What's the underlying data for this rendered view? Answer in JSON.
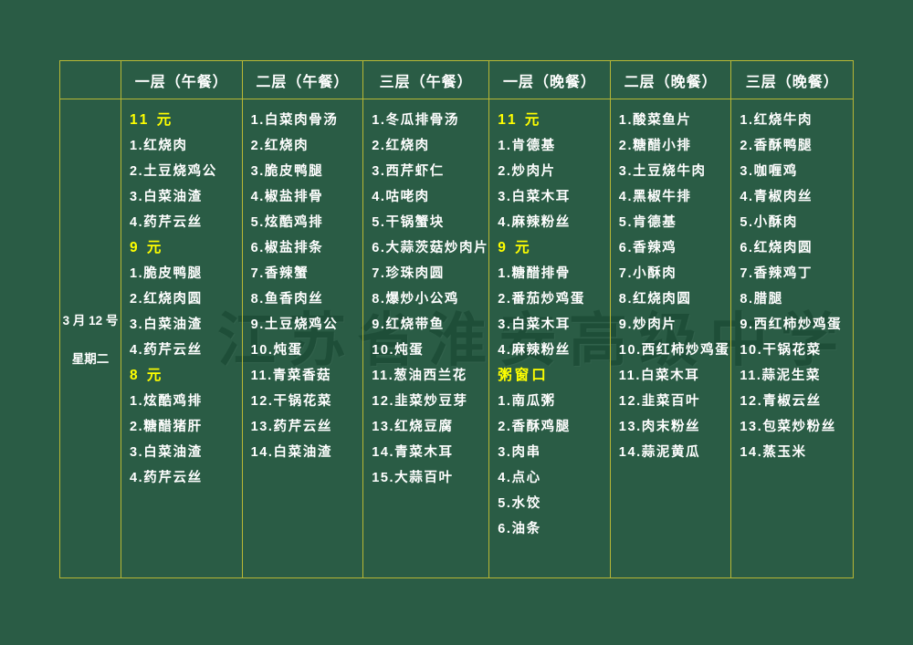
{
  "colors": {
    "background": "#2a5c45",
    "grid_line": "#b7b735",
    "item_text": "#ffffff",
    "highlight_text": "#ffff00",
    "watermark_text": "#1d4c36"
  },
  "watermark": {
    "text": "江苏省淮安高级中学"
  },
  "date": {
    "line1": "3 月 12 号",
    "line2": "星期二"
  },
  "columns": [
    {
      "header": "一层（午餐）",
      "items": [
        {
          "text": "11 元",
          "highlight": true
        },
        {
          "text": "1.红烧肉",
          "highlight": false
        },
        {
          "text": "2.土豆烧鸡公",
          "highlight": false
        },
        {
          "text": "3.白菜油渣",
          "highlight": false
        },
        {
          "text": "4.药芹云丝",
          "highlight": false
        },
        {
          "text": "9 元",
          "highlight": true
        },
        {
          "text": "1.脆皮鸭腿",
          "highlight": false
        },
        {
          "text": "2.红烧肉圆",
          "highlight": false
        },
        {
          "text": "3.白菜油渣",
          "highlight": false
        },
        {
          "text": "4.药芹云丝",
          "highlight": false
        },
        {
          "text": "8 元",
          "highlight": true
        },
        {
          "text": "1.炫酷鸡排",
          "highlight": false
        },
        {
          "text": "2.糖醋猪肝",
          "highlight": false
        },
        {
          "text": "3.白菜油渣",
          "highlight": false
        },
        {
          "text": "4.药芹云丝",
          "highlight": false
        }
      ]
    },
    {
      "header": "二层（午餐）",
      "items": [
        {
          "text": "1.白菜肉骨汤",
          "highlight": false
        },
        {
          "text": "2.红烧肉",
          "highlight": false
        },
        {
          "text": "3.脆皮鸭腿",
          "highlight": false
        },
        {
          "text": "4.椒盐排骨",
          "highlight": false
        },
        {
          "text": "5.炫酷鸡排",
          "highlight": false
        },
        {
          "text": "6.椒盐排条",
          "highlight": false
        },
        {
          "text": "7.香辣蟹",
          "highlight": false
        },
        {
          "text": "8.鱼香肉丝",
          "highlight": false
        },
        {
          "text": "9.土豆烧鸡公",
          "highlight": false
        },
        {
          "text": "10.炖蛋",
          "highlight": false
        },
        {
          "text": "11.青菜香菇",
          "highlight": false
        },
        {
          "text": "12.干锅花菜",
          "highlight": false
        },
        {
          "text": "13.药芹云丝",
          "highlight": false
        },
        {
          "text": "14.白菜油渣",
          "highlight": false
        }
      ]
    },
    {
      "header": "三层（午餐）",
      "items": [
        {
          "text": "1.冬瓜排骨汤",
          "highlight": false
        },
        {
          "text": "2.红烧肉",
          "highlight": false
        },
        {
          "text": "3.西芹虾仁",
          "highlight": false
        },
        {
          "text": "4.咕咾肉",
          "highlight": false
        },
        {
          "text": "5.干锅蟹块",
          "highlight": false
        },
        {
          "text": "6.大蒜茨菇炒肉片",
          "highlight": false
        },
        {
          "text": "7.珍珠肉圆",
          "highlight": false
        },
        {
          "text": "8.爆炒小公鸡",
          "highlight": false
        },
        {
          "text": "9.红烧带鱼",
          "highlight": false
        },
        {
          "text": "10.炖蛋",
          "highlight": false
        },
        {
          "text": "11.葱油西兰花",
          "highlight": false
        },
        {
          "text": "12.韭菜炒豆芽",
          "highlight": false
        },
        {
          "text": "13.红烧豆腐",
          "highlight": false
        },
        {
          "text": "14.青菜木耳",
          "highlight": false
        },
        {
          "text": "15.大蒜百叶",
          "highlight": false
        }
      ]
    },
    {
      "header": "一层（晚餐）",
      "items": [
        {
          "text": "11 元",
          "highlight": true
        },
        {
          "text": "1.肯德基",
          "highlight": false
        },
        {
          "text": "2.炒肉片",
          "highlight": false
        },
        {
          "text": "3.白菜木耳",
          "highlight": false
        },
        {
          "text": "4.麻辣粉丝",
          "highlight": false
        },
        {
          "text": "9 元",
          "highlight": true
        },
        {
          "text": "1.糖醋排骨",
          "highlight": false
        },
        {
          "text": "2.番茄炒鸡蛋",
          "highlight": false
        },
        {
          "text": "3.白菜木耳",
          "highlight": false
        },
        {
          "text": "4.麻辣粉丝",
          "highlight": false
        },
        {
          "text": "粥窗口",
          "highlight": true
        },
        {
          "text": "1.南瓜粥",
          "highlight": false
        },
        {
          "text": "2.香酥鸡腿",
          "highlight": false
        },
        {
          "text": "3.肉串",
          "highlight": false
        },
        {
          "text": "4.点心",
          "highlight": false
        },
        {
          "text": "5.水饺",
          "highlight": false
        },
        {
          "text": "6.油条",
          "highlight": false
        }
      ]
    },
    {
      "header": "二层（晚餐）",
      "items": [
        {
          "text": "1.酸菜鱼片",
          "highlight": false
        },
        {
          "text": "2.糖醋小排",
          "highlight": false
        },
        {
          "text": "3.土豆烧牛肉",
          "highlight": false
        },
        {
          "text": "4.黑椒牛排",
          "highlight": false
        },
        {
          "text": "5.肯德基",
          "highlight": false
        },
        {
          "text": "6.香辣鸡",
          "highlight": false
        },
        {
          "text": "7.小酥肉",
          "highlight": false
        },
        {
          "text": "8.红烧肉圆",
          "highlight": false
        },
        {
          "text": "9.炒肉片",
          "highlight": false
        },
        {
          "text": "10.西红柿炒鸡蛋",
          "highlight": false
        },
        {
          "text": "11.白菜木耳",
          "highlight": false
        },
        {
          "text": "12.韭菜百叶",
          "highlight": false
        },
        {
          "text": "13.肉末粉丝",
          "highlight": false
        },
        {
          "text": "14.蒜泥黄瓜",
          "highlight": false
        }
      ]
    },
    {
      "header": "三层（晚餐）",
      "items": [
        {
          "text": "1.红烧牛肉",
          "highlight": false
        },
        {
          "text": "2.香酥鸭腿",
          "highlight": false
        },
        {
          "text": "3.咖喱鸡",
          "highlight": false
        },
        {
          "text": "4.青椒肉丝",
          "highlight": false
        },
        {
          "text": "5.小酥肉",
          "highlight": false
        },
        {
          "text": "6.红烧肉圆",
          "highlight": false
        },
        {
          "text": "7.香辣鸡丁",
          "highlight": false
        },
        {
          "text": "8.腊腿",
          "highlight": false
        },
        {
          "text": "9.西红柿炒鸡蛋",
          "highlight": false
        },
        {
          "text": "10.干锅花菜",
          "highlight": false
        },
        {
          "text": "11.蒜泥生菜",
          "highlight": false
        },
        {
          "text": "12.青椒云丝",
          "highlight": false
        },
        {
          "text": "13.包菜炒粉丝",
          "highlight": false
        },
        {
          "text": "14.蒸玉米",
          "highlight": false
        }
      ]
    }
  ]
}
